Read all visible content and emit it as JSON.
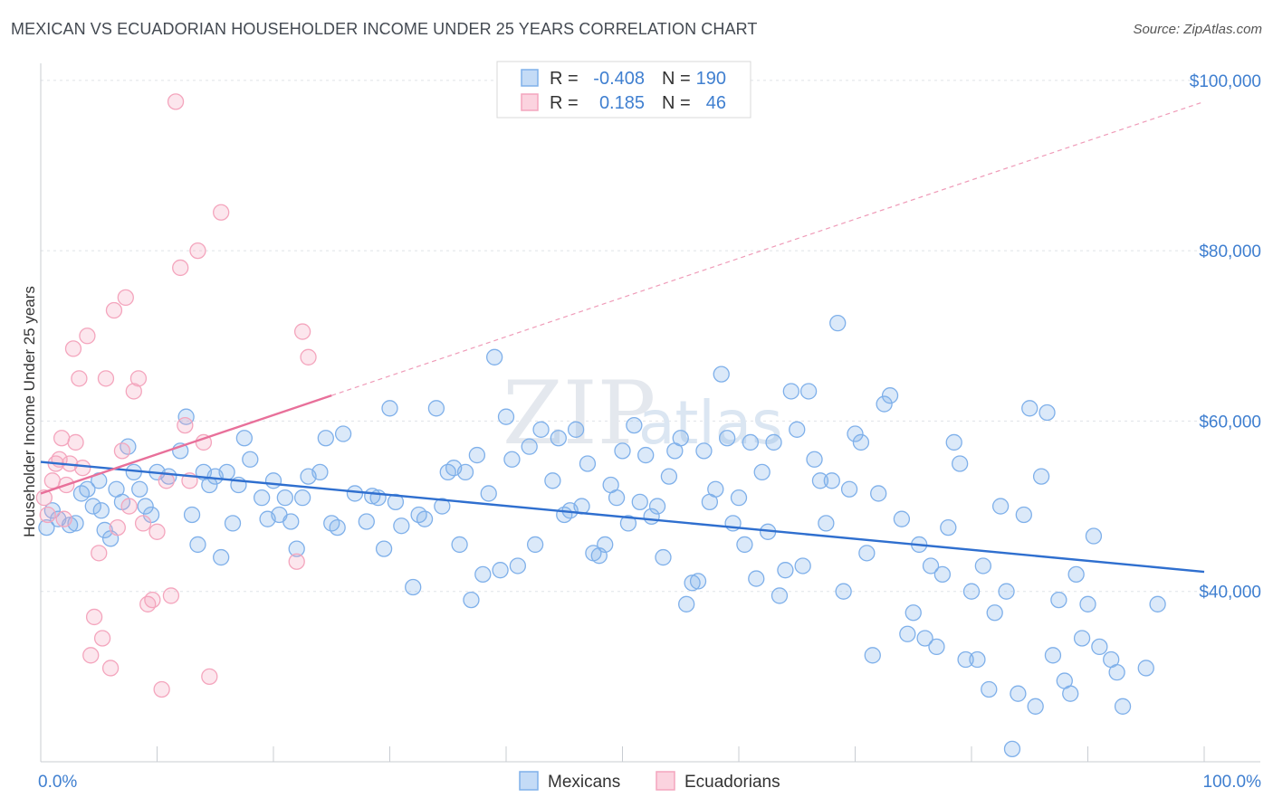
{
  "title": "MEXICAN VS ECUADORIAN HOUSEHOLDER INCOME UNDER 25 YEARS CORRELATION CHART",
  "source": "Source: ZipAtlas.com",
  "watermark": {
    "zip": "ZIP",
    "atlas": "atlas"
  },
  "legend": {
    "rows": [
      {
        "r_label": "R =",
        "r_value": "-0.408",
        "n_label": "N =",
        "n_value": "190",
        "color": "#7fb0ea"
      },
      {
        "r_label": "R =",
        "r_value": "0.185",
        "n_label": "N =",
        "n_value": "46",
        "color": "#f4a5bd"
      }
    ]
  },
  "bottom_legend": {
    "items": [
      {
        "label": "Mexicans",
        "color": "#7fb0ea"
      },
      {
        "label": "Ecuadorians",
        "color": "#f4a5bd"
      }
    ]
  },
  "chart_data": {
    "type": "scatter",
    "ylabel": "Householder Income Under 25 years",
    "xlim": [
      0,
      100
    ],
    "ylim": [
      20000,
      102000
    ],
    "x_ticks": [
      {
        "value": 0,
        "label": "0.0%"
      },
      {
        "value": 100,
        "label": "100.0%"
      }
    ],
    "y_ticks": [
      {
        "value": 40000,
        "label": "$40,000"
      },
      {
        "value": 60000,
        "label": "$60,000"
      },
      {
        "value": 80000,
        "label": "$80,000"
      },
      {
        "value": 100000,
        "label": "$100,000"
      }
    ],
    "grid": true,
    "series": [
      {
        "name": "Mexicans",
        "color": "#7fb0ea",
        "line_color": "#2f6fcf",
        "trend": {
          "x0": 0,
          "y0": 55200,
          "x1": 100,
          "y1": 42300,
          "dashed_to": 100
        },
        "points": [
          [
            0.5,
            47500
          ],
          [
            1,
            49500
          ],
          [
            1.5,
            48500
          ],
          [
            2.5,
            47800
          ],
          [
            3,
            48000
          ],
          [
            3.5,
            51500
          ],
          [
            4,
            52000
          ],
          [
            4.5,
            50000
          ],
          [
            5,
            53000
          ],
          [
            5.2,
            49500
          ],
          [
            5.5,
            47200
          ],
          [
            6,
            46200
          ],
          [
            6.5,
            52000
          ],
          [
            7,
            50500
          ],
          [
            7.5,
            57000
          ],
          [
            8,
            54000
          ],
          [
            8.5,
            52000
          ],
          [
            9,
            50000
          ],
          [
            9.5,
            49000
          ],
          [
            10,
            54000
          ],
          [
            11,
            53500
          ],
          [
            12,
            56500
          ],
          [
            12.5,
            60500
          ],
          [
            13,
            49000
          ],
          [
            13.5,
            45500
          ],
          [
            14,
            54000
          ],
          [
            14.5,
            52500
          ],
          [
            15,
            53500
          ],
          [
            15.5,
            44000
          ],
          [
            16,
            54000
          ],
          [
            16.5,
            48000
          ],
          [
            17,
            52500
          ],
          [
            17.5,
            58000
          ],
          [
            18,
            55500
          ],
          [
            19,
            51000
          ],
          [
            19.5,
            48500
          ],
          [
            20,
            53000
          ],
          [
            20.5,
            49000
          ],
          [
            21,
            51000
          ],
          [
            21.5,
            48200
          ],
          [
            22,
            45000
          ],
          [
            22.5,
            51000
          ],
          [
            23,
            53500
          ],
          [
            24,
            54000
          ],
          [
            24.5,
            58000
          ],
          [
            25,
            48000
          ],
          [
            25.5,
            47500
          ],
          [
            26,
            58500
          ],
          [
            27,
            51500
          ],
          [
            28,
            48200
          ],
          [
            28.5,
            51200
          ],
          [
            29,
            51000
          ],
          [
            29.5,
            45000
          ],
          [
            30,
            61500
          ],
          [
            30.5,
            50500
          ],
          [
            31,
            47700
          ],
          [
            32,
            40500
          ],
          [
            32.5,
            49000
          ],
          [
            33,
            48500
          ],
          [
            34,
            61500
          ],
          [
            34.5,
            50000
          ],
          [
            35,
            54000
          ],
          [
            35.5,
            54500
          ],
          [
            36,
            45500
          ],
          [
            36.5,
            54000
          ],
          [
            37,
            39000
          ],
          [
            37.5,
            56000
          ],
          [
            38,
            42000
          ],
          [
            38.5,
            51500
          ],
          [
            39,
            67500
          ],
          [
            39.5,
            42500
          ],
          [
            40,
            60500
          ],
          [
            40.5,
            55500
          ],
          [
            41,
            43000
          ],
          [
            42,
            57000
          ],
          [
            42.5,
            45500
          ],
          [
            43,
            59000
          ],
          [
            44,
            53000
          ],
          [
            44.5,
            58000
          ],
          [
            45,
            49000
          ],
          [
            45.5,
            49500
          ],
          [
            46,
            59000
          ],
          [
            46.5,
            50000
          ],
          [
            47,
            55000
          ],
          [
            47.5,
            44500
          ],
          [
            48,
            44200
          ],
          [
            48.5,
            45500
          ],
          [
            49,
            52500
          ],
          [
            49.5,
            51000
          ],
          [
            50,
            56500
          ],
          [
            50.5,
            48000
          ],
          [
            51,
            59500
          ],
          [
            51.5,
            50500
          ],
          [
            52,
            56000
          ],
          [
            52.5,
            48800
          ],
          [
            53,
            50000
          ],
          [
            53.5,
            44000
          ],
          [
            54,
            53500
          ],
          [
            54.5,
            56500
          ],
          [
            55,
            58000
          ],
          [
            55.5,
            38500
          ],
          [
            56,
            41000
          ],
          [
            56.5,
            41200
          ],
          [
            57,
            56500
          ],
          [
            57.5,
            50500
          ],
          [
            58,
            52000
          ],
          [
            58.5,
            65500
          ],
          [
            59,
            58000
          ],
          [
            59.5,
            48000
          ],
          [
            60,
            51000
          ],
          [
            60.5,
            45500
          ],
          [
            61,
            57500
          ],
          [
            61.5,
            41500
          ],
          [
            62,
            54000
          ],
          [
            62.5,
            47000
          ],
          [
            63,
            57500
          ],
          [
            63.5,
            39500
          ],
          [
            64,
            42500
          ],
          [
            64.5,
            63500
          ],
          [
            65,
            59000
          ],
          [
            65.5,
            43000
          ],
          [
            66,
            63500
          ],
          [
            66.5,
            55500
          ],
          [
            67,
            53000
          ],
          [
            67.5,
            48000
          ],
          [
            68,
            53000
          ],
          [
            68.5,
            71500
          ],
          [
            69,
            40000
          ],
          [
            69.5,
            52000
          ],
          [
            70,
            58500
          ],
          [
            70.5,
            57500
          ],
          [
            71,
            44500
          ],
          [
            71.5,
            32500
          ],
          [
            72,
            51500
          ],
          [
            72.5,
            62000
          ],
          [
            73,
            63000
          ],
          [
            74,
            48500
          ],
          [
            74.5,
            35000
          ],
          [
            75,
            37500
          ],
          [
            75.5,
            45500
          ],
          [
            76,
            34500
          ],
          [
            76.5,
            43000
          ],
          [
            77,
            33500
          ],
          [
            77.5,
            42000
          ],
          [
            78,
            47500
          ],
          [
            78.5,
            57500
          ],
          [
            79,
            55000
          ],
          [
            79.5,
            32000
          ],
          [
            80,
            40000
          ],
          [
            80.5,
            32000
          ],
          [
            81,
            43000
          ],
          [
            81.5,
            28500
          ],
          [
            82,
            37500
          ],
          [
            82.5,
            50000
          ],
          [
            83,
            40000
          ],
          [
            83.5,
            21500
          ],
          [
            84,
            28000
          ],
          [
            84.5,
            49000
          ],
          [
            85,
            61500
          ],
          [
            85.5,
            26500
          ],
          [
            86,
            53500
          ],
          [
            86.5,
            61000
          ],
          [
            87,
            32500
          ],
          [
            87.5,
            39000
          ],
          [
            88,
            29500
          ],
          [
            88.5,
            28000
          ],
          [
            89,
            42000
          ],
          [
            89.5,
            34500
          ],
          [
            90,
            38500
          ],
          [
            90.5,
            46500
          ],
          [
            91,
            33500
          ],
          [
            92,
            32000
          ],
          [
            92.5,
            30500
          ],
          [
            93,
            26500
          ],
          [
            95,
            31000
          ],
          [
            96,
            38500
          ]
        ]
      },
      {
        "name": "Ecuadorians",
        "color": "#f4a5bd",
        "line_color": "#e8709a",
        "trend": {
          "x0": 0,
          "y0": 51500,
          "x1": 25,
          "y1": 63000,
          "dashed_to": 100
        },
        "points": [
          [
            0.3,
            51000
          ],
          [
            0.6,
            49000
          ],
          [
            1,
            53000
          ],
          [
            1.3,
            55000
          ],
          [
            1.6,
            55500
          ],
          [
            1.8,
            58000
          ],
          [
            2,
            48500
          ],
          [
            2.2,
            52500
          ],
          [
            2.5,
            55000
          ],
          [
            2.8,
            68500
          ],
          [
            3,
            57500
          ],
          [
            3.3,
            65000
          ],
          [
            3.6,
            54500
          ],
          [
            4,
            70000
          ],
          [
            4.3,
            32500
          ],
          [
            4.6,
            37000
          ],
          [
            5,
            44500
          ],
          [
            5.3,
            34500
          ],
          [
            5.6,
            65000
          ],
          [
            6,
            31000
          ],
          [
            6.3,
            73000
          ],
          [
            6.6,
            47500
          ],
          [
            7,
            56500
          ],
          [
            7.3,
            74500
          ],
          [
            7.6,
            50000
          ],
          [
            8,
            63500
          ],
          [
            8.4,
            65000
          ],
          [
            8.8,
            48000
          ],
          [
            9.2,
            38500
          ],
          [
            9.6,
            39000
          ],
          [
            10,
            47000
          ],
          [
            10.4,
            28500
          ],
          [
            10.8,
            53000
          ],
          [
            11.2,
            39500
          ],
          [
            11.6,
            97500
          ],
          [
            12,
            78000
          ],
          [
            12.4,
            59500
          ],
          [
            12.8,
            53000
          ],
          [
            13.5,
            80000
          ],
          [
            14,
            57500
          ],
          [
            14.5,
            30000
          ],
          [
            15.5,
            84500
          ],
          [
            22,
            43500
          ],
          [
            22.5,
            70500
          ],
          [
            23,
            67500
          ]
        ]
      }
    ]
  }
}
